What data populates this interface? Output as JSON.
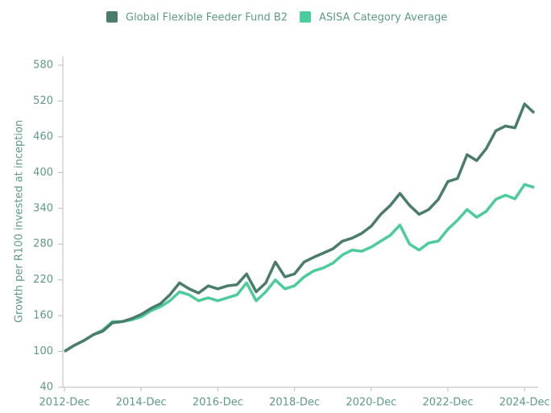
{
  "chart_data": {
    "type": "line",
    "ylabel": "Growth per R100 invested at inception",
    "categories": [
      "2012-Dec",
      "2013-Mar",
      "2013-Jun",
      "2013-Sep",
      "2013-Dec",
      "2014-Mar",
      "2014-Jun",
      "2014-Sep",
      "2014-Dec",
      "2015-Mar",
      "2015-Jun",
      "2015-Sep",
      "2015-Dec",
      "2016-Mar",
      "2016-Jun",
      "2016-Sep",
      "2016-Dec",
      "2017-Mar",
      "2017-Jun",
      "2017-Sep",
      "2017-Dec",
      "2018-Mar",
      "2018-Jun",
      "2018-Sep",
      "2018-Dec",
      "2019-Mar",
      "2019-Jun",
      "2019-Sep",
      "2019-Dec",
      "2020-Mar",
      "2020-Jun",
      "2020-Sep",
      "2020-Dec",
      "2021-Mar",
      "2021-Jun",
      "2021-Sep",
      "2021-Dec",
      "2022-Mar",
      "2022-Jun",
      "2022-Sep",
      "2022-Dec",
      "2023-Mar",
      "2023-Jun",
      "2023-Sep",
      "2023-Dec",
      "2024-Mar",
      "2024-Jun",
      "2024-Sep",
      "2024-Dec",
      "2025-Mar"
    ],
    "series": [
      {
        "name": "Global Flexible Feeder Fund B2",
        "color": "#4a7c6a",
        "values": [
          100,
          110,
          118,
          128,
          134,
          148,
          150,
          155,
          162,
          172,
          180,
          195,
          215,
          205,
          198,
          210,
          205,
          210,
          212,
          230,
          200,
          215,
          250,
          225,
          230,
          250,
          258,
          265,
          272,
          285,
          290,
          298,
          310,
          330,
          345,
          365,
          345,
          330,
          338,
          355,
          385,
          390,
          430,
          420,
          440,
          470,
          478,
          475,
          515,
          500
        ]
      },
      {
        "name": "ASISA Category Average",
        "color": "#4ccc9a",
        "values": [
          100,
          110,
          118,
          128,
          136,
          150,
          150,
          153,
          158,
          168,
          175,
          185,
          200,
          195,
          185,
          190,
          185,
          190,
          195,
          215,
          185,
          200,
          220,
          205,
          210,
          225,
          235,
          240,
          248,
          262,
          270,
          268,
          275,
          285,
          295,
          312,
          280,
          270,
          282,
          285,
          305,
          320,
          338,
          325,
          335,
          355,
          362,
          356,
          380,
          375
        ]
      }
    ],
    "xticks": [
      "2012-Dec",
      "2014-Dec",
      "2016-Dec",
      "2018-Dec",
      "2020-Dec",
      "2022-Dec",
      "2024-Dec"
    ],
    "ylim": [
      40,
      580
    ],
    "yticks": [
      40,
      100,
      160,
      220,
      280,
      340,
      400,
      460,
      520,
      580
    ]
  }
}
